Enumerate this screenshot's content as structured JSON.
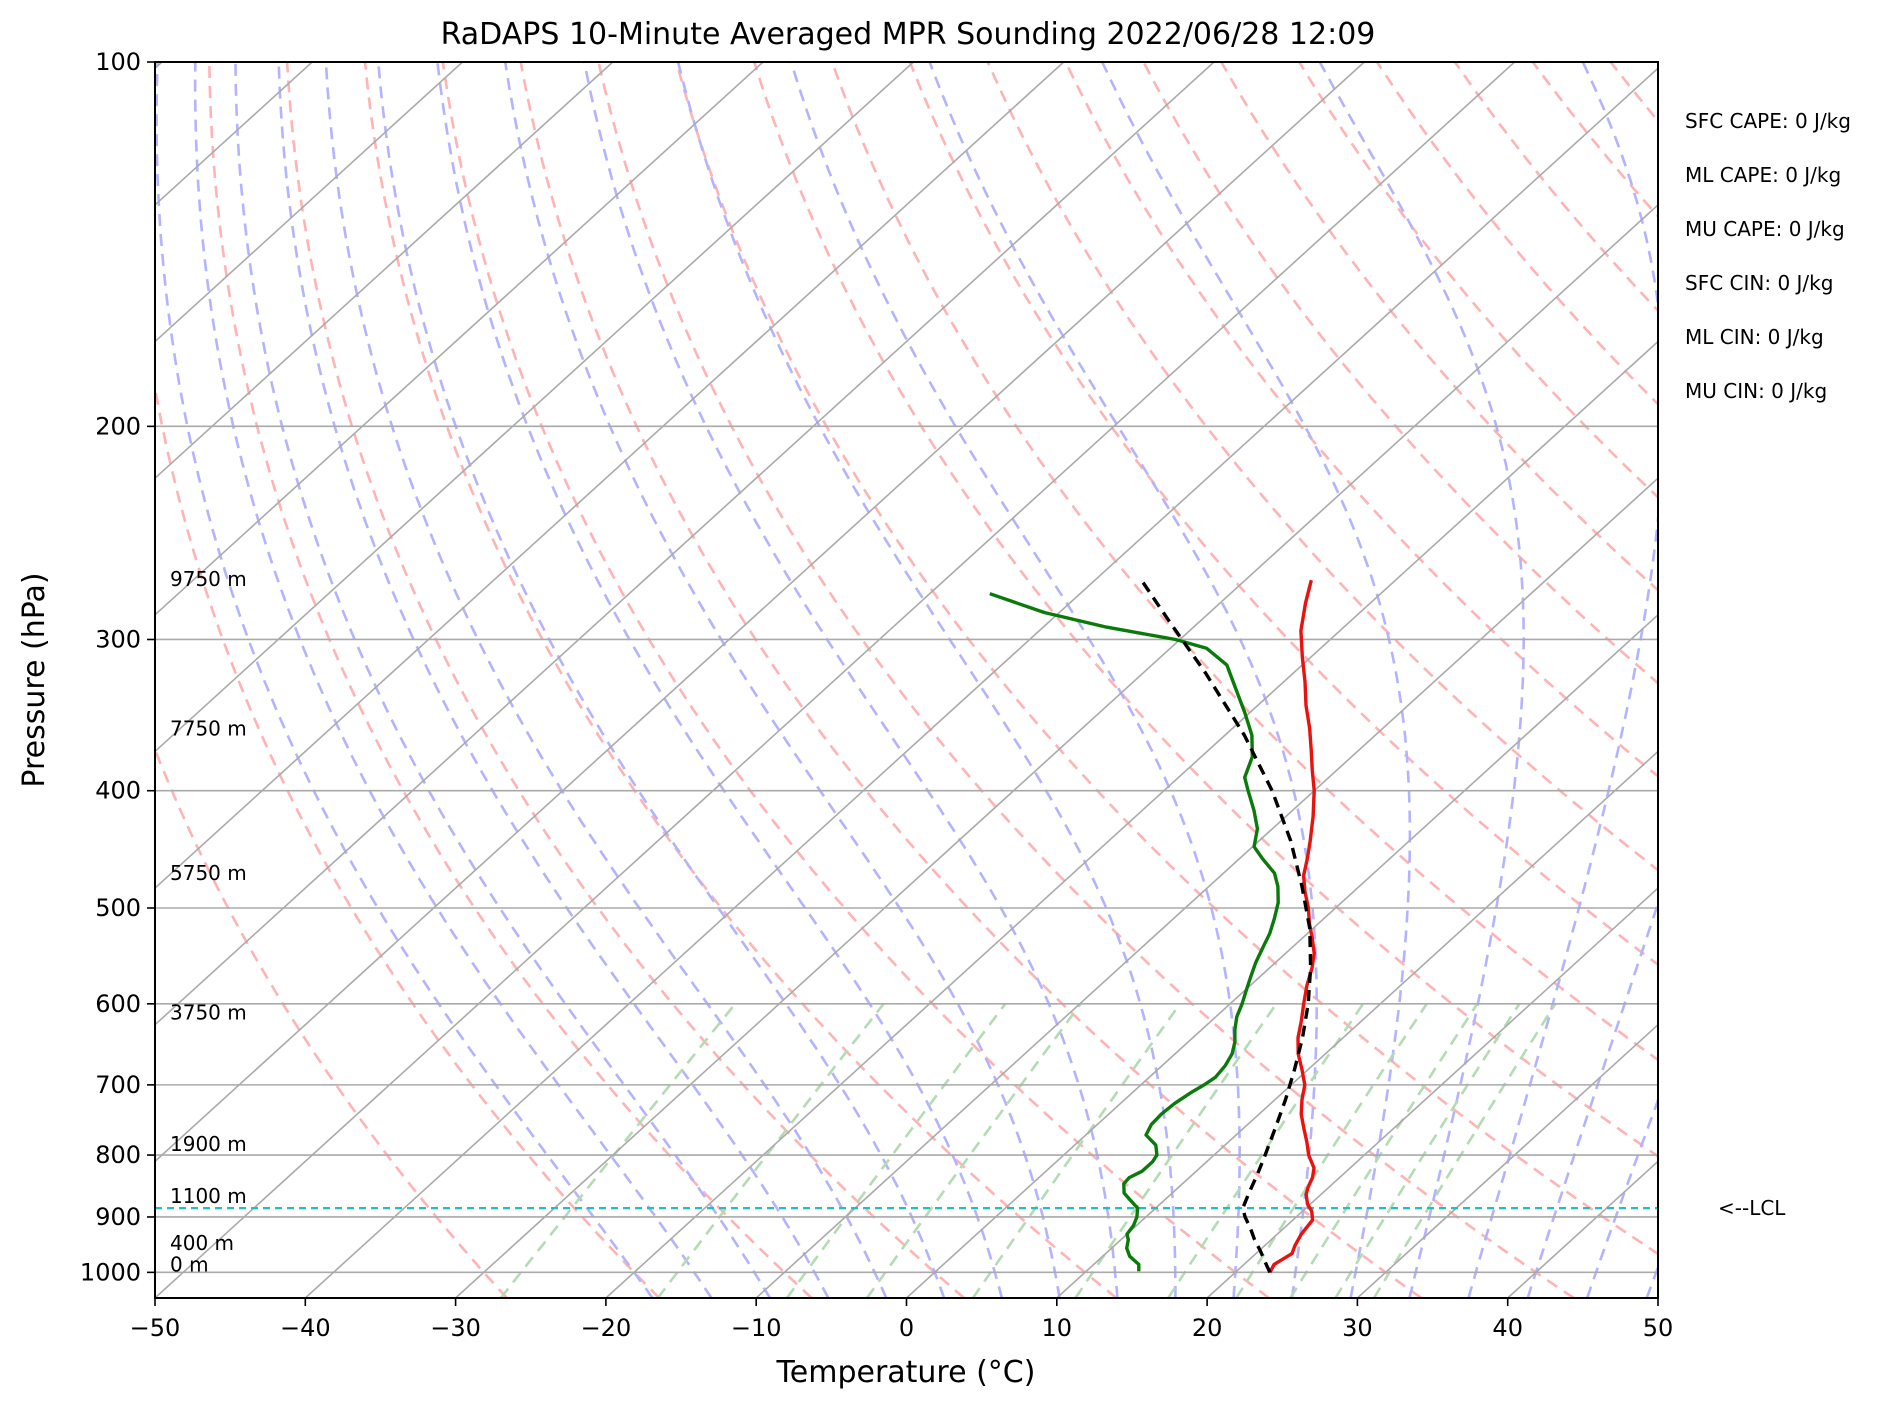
{
  "chart_data": {
    "type": "line",
    "subtype": "skew-T log-P diagram",
    "title": "RaDAPS 10-Minute Averaged MPR Sounding 2022/06/28 12:09",
    "xlabel": "Temperature (°C)",
    "ylabel": "Pressure (hPa)",
    "xlim": [
      -50,
      50
    ],
    "ylim": [
      1050,
      100
    ],
    "y_scale": "log",
    "x_ticks": [
      -50,
      -40,
      -30,
      -20,
      -10,
      0,
      10,
      20,
      30,
      40,
      50
    ],
    "x_tick_labels": [
      "−50",
      "−40",
      "−30",
      "−20",
      "−10",
      "0",
      "10",
      "20",
      "30",
      "40",
      "50"
    ],
    "y_ticks": [
      100,
      200,
      300,
      400,
      500,
      600,
      700,
      800,
      900,
      1000
    ],
    "y_tick_labels": [
      "100",
      "200",
      "300",
      "400",
      "500",
      "600",
      "700",
      "800",
      "900",
      "1000"
    ],
    "grid": true,
    "series": [
      {
        "role": "temperature",
        "color": "#e8120e",
        "points": [
          [
            1000,
            22.3
          ],
          [
            985,
            22.0
          ],
          [
            965,
            22.4
          ],
          [
            950,
            22.0
          ],
          [
            930,
            21.6
          ],
          [
            905,
            21.3
          ],
          [
            890,
            20.6
          ],
          [
            878,
            19.8
          ],
          [
            862,
            19.0
          ],
          [
            850,
            18.6
          ],
          [
            835,
            18.2
          ],
          [
            820,
            17.6
          ],
          [
            800,
            16.3
          ],
          [
            780,
            15.2
          ],
          [
            760,
            14.0
          ],
          [
            740,
            12.8
          ],
          [
            720,
            11.8
          ],
          [
            700,
            10.9
          ],
          [
            680,
            9.6
          ],
          [
            660,
            8.2
          ],
          [
            640,
            7.0
          ],
          [
            620,
            6.0
          ],
          [
            600,
            4.9
          ],
          [
            580,
            3.8
          ],
          [
            560,
            2.8
          ],
          [
            545,
            1.9
          ],
          [
            530,
            0.7
          ],
          [
            515,
            -0.6
          ],
          [
            500,
            -1.8
          ],
          [
            485,
            -3.2
          ],
          [
            470,
            -4.5
          ],
          [
            455,
            -5.5
          ],
          [
            440,
            -6.6
          ],
          [
            420,
            -8.2
          ],
          [
            400,
            -10.0
          ],
          [
            385,
            -11.6
          ],
          [
            370,
            -13.2
          ],
          [
            355,
            -14.9
          ],
          [
            340,
            -16.8
          ],
          [
            325,
            -18.6
          ],
          [
            310,
            -20.6
          ],
          [
            295,
            -22.6
          ],
          [
            280,
            -24.3
          ],
          [
            268,
            -25.6
          ]
        ]
      },
      {
        "role": "dewpoint",
        "color": "#0a7a0a",
        "points": [
          [
            998,
            13.5
          ],
          [
            985,
            13.0
          ],
          [
            970,
            11.8
          ],
          [
            955,
            11.0
          ],
          [
            940,
            10.5
          ],
          [
            930,
            10.0
          ],
          [
            915,
            9.8
          ],
          [
            900,
            9.4
          ],
          [
            885,
            8.8
          ],
          [
            870,
            7.6
          ],
          [
            860,
            6.8
          ],
          [
            845,
            6.1
          ],
          [
            835,
            6.0
          ],
          [
            825,
            6.4
          ],
          [
            810,
            6.4
          ],
          [
            800,
            6.2
          ],
          [
            785,
            5.4
          ],
          [
            770,
            4.0
          ],
          [
            755,
            3.6
          ],
          [
            740,
            3.5
          ],
          [
            725,
            3.6
          ],
          [
            710,
            3.9
          ],
          [
            700,
            4.2
          ],
          [
            690,
            4.4
          ],
          [
            675,
            4.2
          ],
          [
            660,
            3.8
          ],
          [
            645,
            3.1
          ],
          [
            630,
            2.2
          ],
          [
            615,
            1.4
          ],
          [
            600,
            0.8
          ],
          [
            585,
            0.1
          ],
          [
            570,
            -0.6
          ],
          [
            555,
            -1.3
          ],
          [
            540,
            -1.9
          ],
          [
            525,
            -2.5
          ],
          [
            510,
            -3.3
          ],
          [
            495,
            -4.2
          ],
          [
            480,
            -5.4
          ],
          [
            468,
            -6.6
          ],
          [
            455,
            -8.5
          ],
          [
            445,
            -9.9
          ],
          [
            430,
            -11.0
          ],
          [
            415,
            -12.6
          ],
          [
            400,
            -14.4
          ],
          [
            390,
            -15.6
          ],
          [
            375,
            -16.6
          ],
          [
            360,
            -18.2
          ],
          [
            345,
            -20.3
          ],
          [
            330,
            -22.6
          ],
          [
            315,
            -25.0
          ],
          [
            305,
            -27.6
          ],
          [
            300,
            -30.3
          ],
          [
            293,
            -35.8
          ],
          [
            285,
            -41.0
          ],
          [
            275,
            -46.0
          ]
        ]
      },
      {
        "role": "parcel",
        "color": "#000000",
        "dashed": true,
        "points": [
          [
            1000,
            22.3
          ],
          [
            980,
            21.2
          ],
          [
            960,
            20.1
          ],
          [
            940,
            18.9
          ],
          [
            920,
            17.8
          ],
          [
            900,
            16.6
          ],
          [
            885,
            15.8
          ],
          [
            860,
            15.1
          ],
          [
            830,
            14.3
          ],
          [
            800,
            13.4
          ],
          [
            760,
            12.1
          ],
          [
            720,
            10.7
          ],
          [
            680,
            9.1
          ],
          [
            640,
            7.3
          ],
          [
            600,
            5.2
          ],
          [
            560,
            2.7
          ],
          [
            520,
            -0.2
          ],
          [
            480,
            -3.8
          ],
          [
            440,
            -7.9
          ],
          [
            400,
            -12.8
          ],
          [
            360,
            -18.7
          ],
          [
            320,
            -25.8
          ],
          [
            290,
            -32.0
          ],
          [
            268,
            -36.9
          ]
        ]
      }
    ],
    "lcl": {
      "pressure": 885,
      "label": "<--LCL",
      "color": "#14c4c4"
    },
    "height_labels": [
      {
        "pressure": 271,
        "text": "9750 m"
      },
      {
        "pressure": 360,
        "text": "7750 m"
      },
      {
        "pressure": 474,
        "text": "5750 m"
      },
      {
        "pressure": 618,
        "text": "3750 m"
      },
      {
        "pressure": 794,
        "text": "1900 m"
      },
      {
        "pressure": 876,
        "text": "1100 m"
      },
      {
        "pressure": 958,
        "text": "400 m"
      },
      {
        "pressure": 998,
        "text": "0 m"
      }
    ],
    "indices": [
      "SFC CAPE: 0 J/kg",
      "ML CAPE: 0 J/kg",
      "MU CAPE: 0 J/kg",
      "SFC CIN: 0 J/kg",
      "ML CIN: 0 J/kg",
      "MU CIN: 0 J/kg"
    ],
    "background_lines": {
      "isotherm_color": "#aaaaaa",
      "dry_adiabat_color": "#ffb3b3",
      "moist_adiabat_color": "#b3b3ff",
      "mixing_ratio_color": "#b3dcb3"
    }
  }
}
